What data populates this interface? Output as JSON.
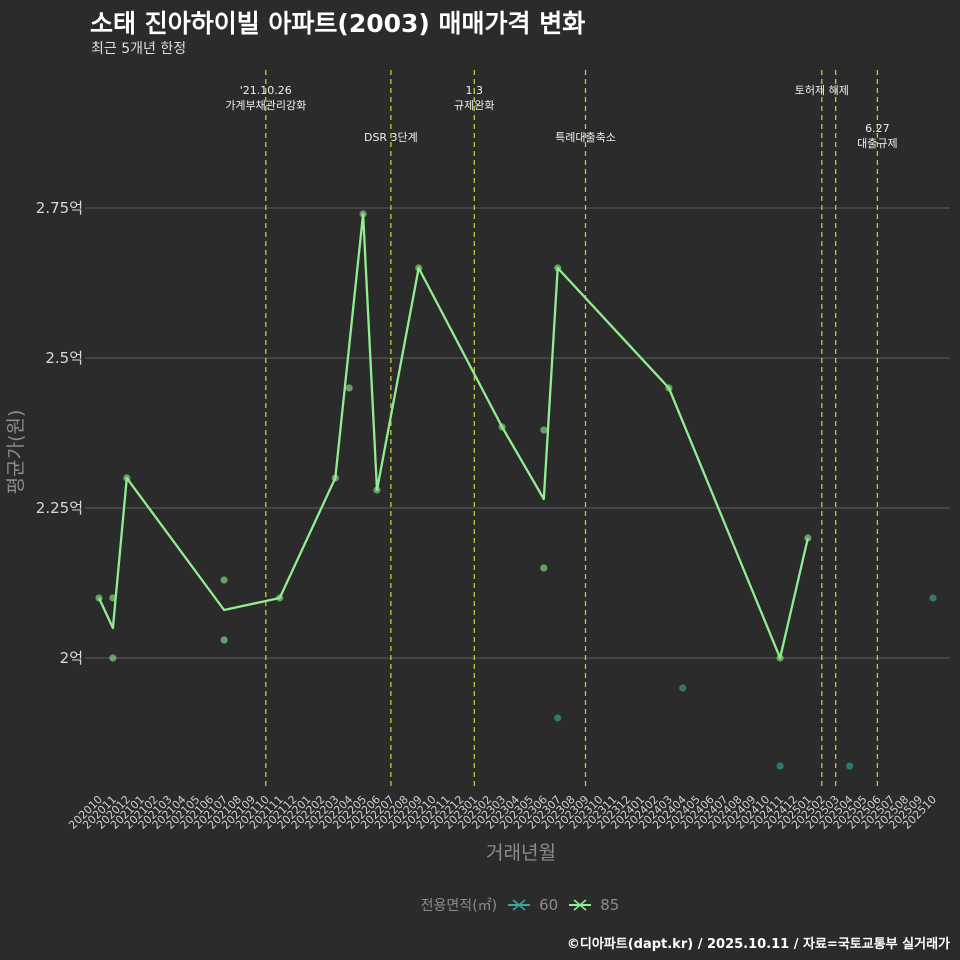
{
  "header": {
    "title": "소태 진아하이빌 아파트(2003) 매매가격 변화",
    "subtitle": "최근 5개년 한정"
  },
  "legend": {
    "title": "전용면적(㎡)",
    "items": [
      "60",
      "85"
    ]
  },
  "credit": "©디아파트(dapt.kr) / 2025.10.11 / 자료=국토교통부 실거래가",
  "colors": {
    "background": "#2b2b2b",
    "grid": "#5c5c5c",
    "event_line": "#c8c832",
    "series_60": "#3aa5a0",
    "series_85": "#90ee90"
  },
  "chart_data": {
    "type": "line",
    "title": "소태 진아하이빌 아파트(2003) 매매가격 변화",
    "subtitle": "최근 5개년 한정",
    "xlabel": "거래년월",
    "ylabel": "평균가(원)",
    "ylim": [
      1.78,
      2.98
    ],
    "yticks": [
      2.0,
      2.25,
      2.5,
      2.75
    ],
    "ytick_labels": [
      "2억",
      "2.25억",
      "2.5억",
      "2.75억"
    ],
    "categories": [
      "202010",
      "202011",
      "202012",
      "202101",
      "202102",
      "202103",
      "202104",
      "202105",
      "202106",
      "202107",
      "202108",
      "202109",
      "202110",
      "202111",
      "202112",
      "202201",
      "202202",
      "202203",
      "202204",
      "202205",
      "202206",
      "202207",
      "202208",
      "202209",
      "202210",
      "202211",
      "202212",
      "202301",
      "202302",
      "202303",
      "202304",
      "202305",
      "202306",
      "202307",
      "202308",
      "202309",
      "202310",
      "202311",
      "202312",
      "202401",
      "202402",
      "202403",
      "202404",
      "202405",
      "202406",
      "202407",
      "202408",
      "202409",
      "202410",
      "202411",
      "202412",
      "202501",
      "202502",
      "202503",
      "202504",
      "202505",
      "202506",
      "202507",
      "202508",
      "202509",
      "202510"
    ],
    "events": [
      {
        "month": "202110",
        "label": [
          "'21.10.26",
          "가계부채관리강화"
        ],
        "level": 1
      },
      {
        "month": "202207",
        "label": [
          "DSR 3단계"
        ],
        "level": 2
      },
      {
        "month": "202301",
        "label": [
          "1.3",
          "규제완화"
        ],
        "level": 1
      },
      {
        "month": "202309",
        "label": [
          "특례대출축소"
        ],
        "level": 2
      },
      {
        "month": "202502",
        "label": [
          "토허제 해제"
        ],
        "level": 1
      },
      {
        "month": "202503",
        "label": [],
        "level": 1
      },
      {
        "month": "202506",
        "label": [
          "6.27",
          "대출규제"
        ],
        "level": 3
      }
    ],
    "series": [
      {
        "name": "85",
        "line": [
          [
            "202010",
            2.1
          ],
          [
            "202011",
            2.05
          ],
          [
            "202012",
            2.3
          ],
          [
            "202107",
            2.08
          ],
          [
            "202111",
            2.1
          ],
          [
            "202203",
            2.3
          ],
          [
            "202205",
            2.74
          ],
          [
            "202206",
            2.28
          ],
          [
            "202209",
            2.65
          ],
          [
            "202303",
            2.385
          ],
          [
            "202306",
            2.265
          ],
          [
            "202307",
            2.65
          ],
          [
            "202403",
            2.45
          ],
          [
            "202411",
            2.0
          ],
          [
            "202501",
            2.2
          ]
        ],
        "points": [
          [
            "202010",
            2.1
          ],
          [
            "202011",
            2.1
          ],
          [
            "202011",
            2.0
          ],
          [
            "202012",
            2.3
          ],
          [
            "202107",
            2.13
          ],
          [
            "202107",
            2.03
          ],
          [
            "202111",
            2.1
          ],
          [
            "202203",
            2.3
          ],
          [
            "202204",
            2.45
          ],
          [
            "202205",
            2.74
          ],
          [
            "202206",
            2.28
          ],
          [
            "202209",
            2.65
          ],
          [
            "202303",
            2.385
          ],
          [
            "202306",
            2.38
          ],
          [
            "202306",
            2.15
          ],
          [
            "202307",
            2.65
          ],
          [
            "202403",
            2.45
          ],
          [
            "202411",
            2.0
          ],
          [
            "202501",
            2.2
          ]
        ]
      },
      {
        "name": "60",
        "line": [],
        "points": [
          [
            "202307",
            1.9
          ],
          [
            "202404",
            1.95
          ],
          [
            "202411",
            1.82
          ],
          [
            "202504",
            1.82
          ],
          [
            "202510",
            2.1
          ]
        ]
      }
    ]
  }
}
